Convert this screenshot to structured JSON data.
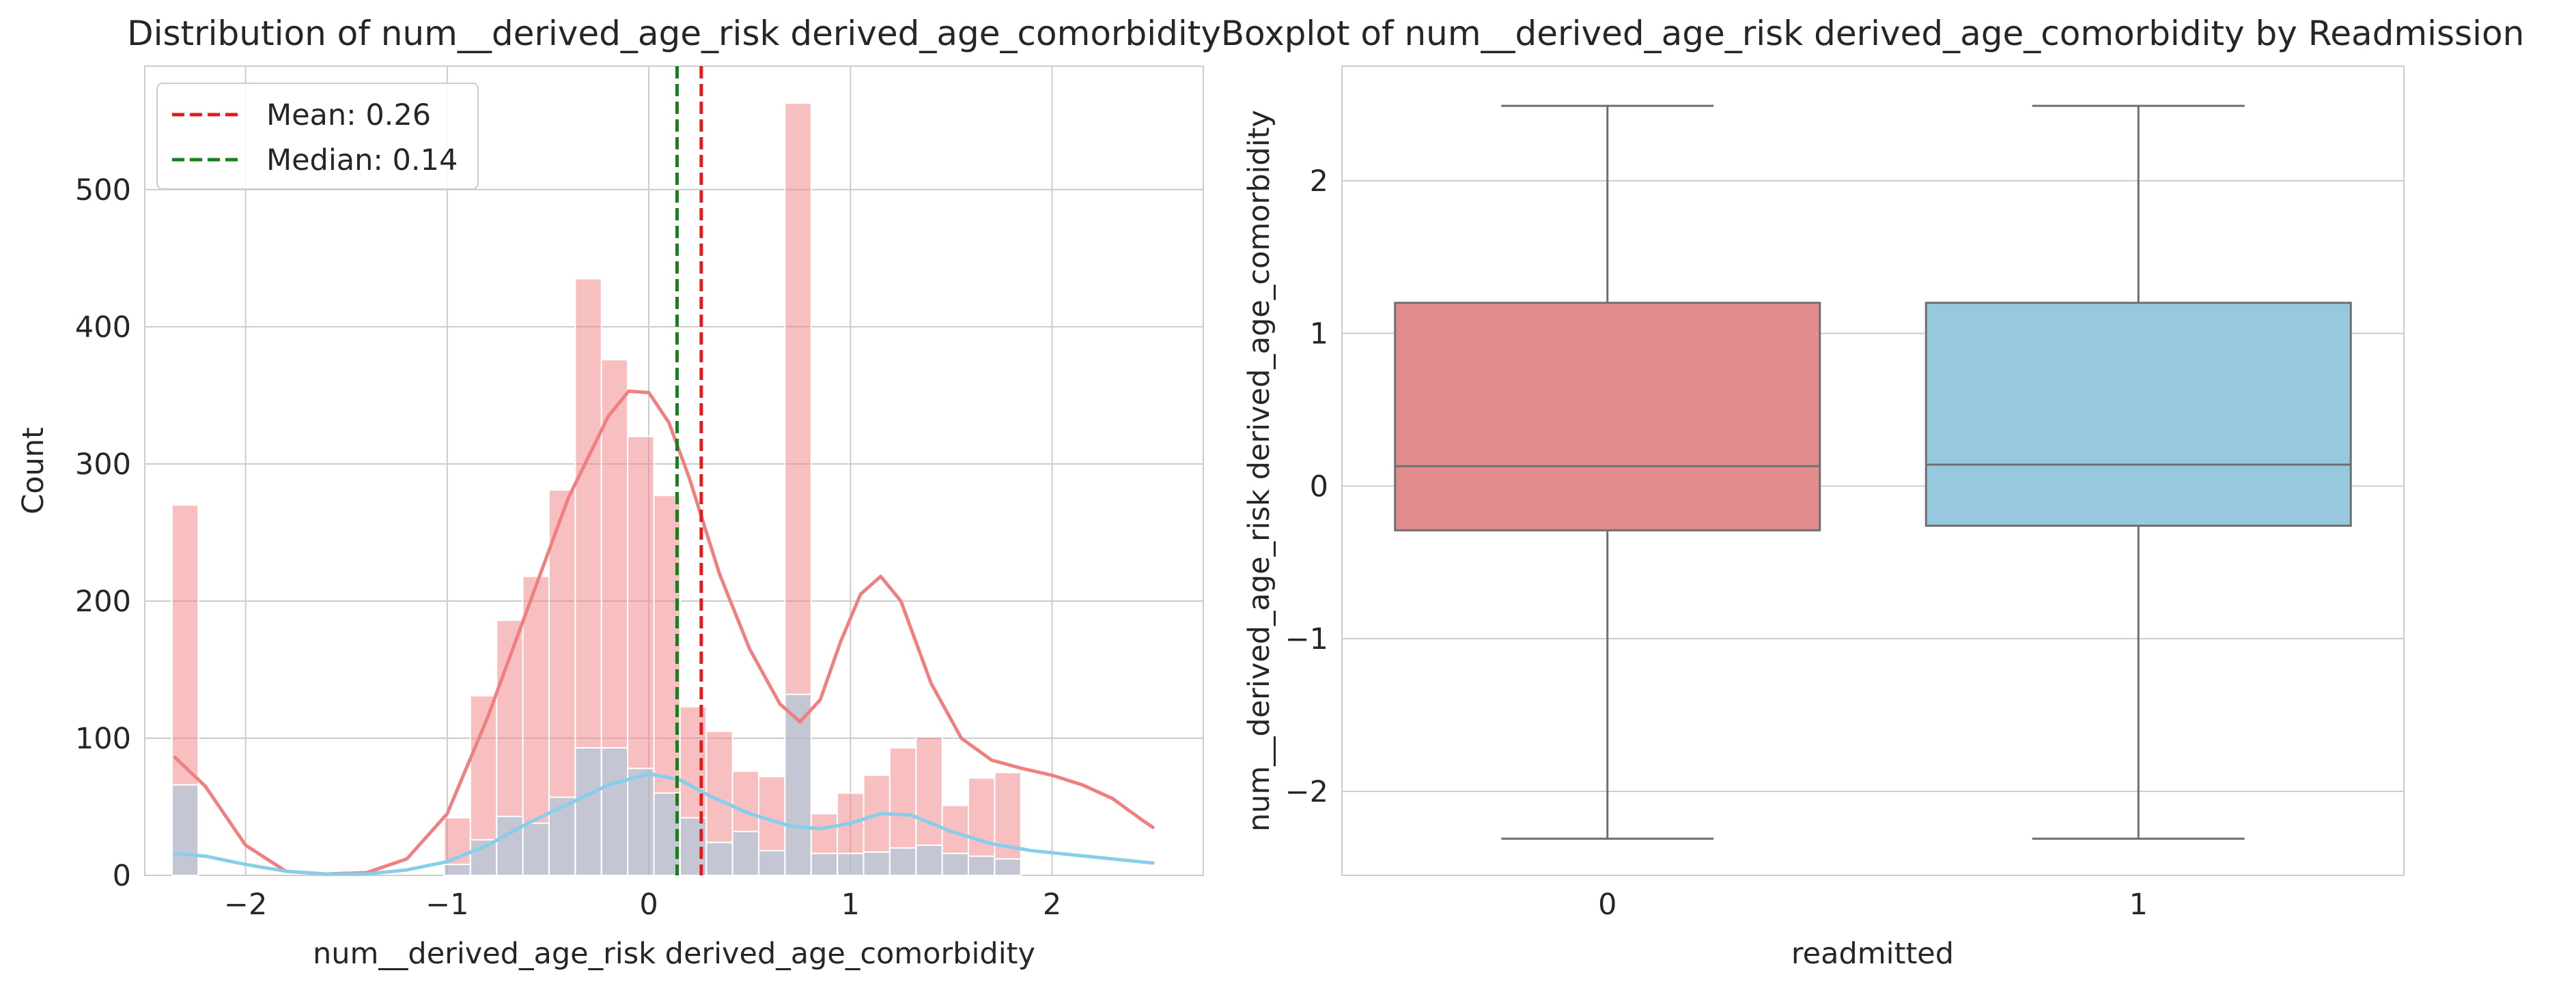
{
  "chart_data": [
    {
      "type": "histogram",
      "title": "Distribution of num__derived_age_risk derived_age_comorbidity",
      "xlabel": "num__derived_age_risk derived_age_comorbidity",
      "ylabel": "Count",
      "xlim": [
        -2.5,
        2.75
      ],
      "ylim": [
        0,
        590
      ],
      "xticks": [
        -2,
        -1,
        0,
        1,
        2
      ],
      "xtick_labels": [
        "−2",
        "−1",
        "0",
        "1",
        "2"
      ],
      "yticks": [
        0,
        100,
        200,
        300,
        400,
        500
      ],
      "ytick_labels": [
        "0",
        "100",
        "200",
        "300",
        "400",
        "500"
      ],
      "grid": true,
      "legend_position": "top-left",
      "bin_edges": [
        -2.3,
        -2.1,
        -1.9,
        -1.7,
        -1.5,
        -1.3,
        -1.1,
        -0.9,
        -0.7,
        -0.5,
        -0.3,
        -0.1,
        0.1,
        0.3,
        0.5,
        0.7,
        0.9,
        1.1,
        1.3,
        1.5,
        1.7,
        1.9,
        2.1,
        2.3,
        2.5
      ],
      "series": [
        {
          "color": "#F08080",
          "counts": [
            270,
            0,
            0,
            0,
            0,
            0,
            0,
            0,
            0,
            0,
            0,
            0,
            0,
            0,
            0,
            0,
            0,
            0,
            0,
            0,
            0,
            0,
            0,
            0
          ],
          "counts_detail": {
            "x": [
              -2.3,
              -0.95,
              -0.82,
              -0.69,
              -0.56,
              -0.43,
              -0.3,
              -0.17,
              -0.04,
              0.09,
              0.22,
              0.35,
              0.48,
              0.61,
              0.74,
              0.87,
              1.0,
              1.13,
              1.26,
              1.39,
              1.52,
              1.65,
              1.78,
              1.91,
              2.04,
              2.17,
              2.3,
              2.43
            ],
            "counts": [
              270,
              42,
              131,
              186,
              218,
              281,
              435,
              376,
              320,
              277,
              123,
              105,
              76,
              72,
              563,
              45,
              60,
              73,
              93,
              101,
              51,
              71,
              75,
              0,
              0,
              0,
              0,
              0
            ]
          },
          "kde": [
            [
              -2.35,
              86
            ],
            [
              -2.2,
              65
            ],
            [
              -2.0,
              22
            ],
            [
              -1.8,
              3
            ],
            [
              -1.6,
              1
            ],
            [
              -1.4,
              2
            ],
            [
              -1.2,
              12
            ],
            [
              -1.0,
              45
            ],
            [
              -0.8,
              115
            ],
            [
              -0.6,
              195
            ],
            [
              -0.4,
              275
            ],
            [
              -0.2,
              335
            ],
            [
              -0.1,
              353
            ],
            [
              0.0,
              352
            ],
            [
              0.1,
              330
            ],
            [
              0.2,
              290
            ],
            [
              0.35,
              220
            ],
            [
              0.5,
              165
            ],
            [
              0.65,
              125
            ],
            [
              0.75,
              112
            ],
            [
              0.85,
              128
            ],
            [
              0.95,
              170
            ],
            [
              1.05,
              205
            ],
            [
              1.15,
              218
            ],
            [
              1.25,
              200
            ],
            [
              1.4,
              140
            ],
            [
              1.55,
              100
            ],
            [
              1.7,
              84
            ],
            [
              1.85,
              78
            ],
            [
              2.0,
              73
            ],
            [
              2.15,
              66
            ],
            [
              2.3,
              56
            ],
            [
              2.45,
              40
            ],
            [
              2.5,
              35
            ]
          ]
        },
        {
          "color": "#87CEEB",
          "counts_detail": {
            "x": [
              -2.3,
              -0.95,
              -0.82,
              -0.69,
              -0.56,
              -0.43,
              -0.3,
              -0.17,
              -0.04,
              0.09,
              0.22,
              0.35,
              0.48,
              0.61,
              0.74,
              0.87,
              1.0,
              1.13,
              1.26,
              1.39,
              1.52,
              1.65,
              1.78,
              1.91,
              2.04,
              2.17,
              2.3,
              2.43
            ],
            "counts": [
              66,
              8,
              26,
              43,
              38,
              57,
              93,
              93,
              78,
              60,
              42,
              24,
              32,
              18,
              132,
              16,
              16,
              17,
              20,
              22,
              16,
              14,
              12,
              0,
              0,
              0,
              0,
              0
            ]
          },
          "kde": [
            [
              -2.35,
              16
            ],
            [
              -2.2,
              14
            ],
            [
              -2.0,
              8
            ],
            [
              -1.8,
              3
            ],
            [
              -1.6,
              1
            ],
            [
              -1.4,
              1
            ],
            [
              -1.2,
              4
            ],
            [
              -1.0,
              10
            ],
            [
              -0.8,
              22
            ],
            [
              -0.6,
              38
            ],
            [
              -0.4,
              52
            ],
            [
              -0.2,
              66
            ],
            [
              0.0,
              74
            ],
            [
              0.15,
              70
            ],
            [
              0.3,
              58
            ],
            [
              0.5,
              45
            ],
            [
              0.7,
              36
            ],
            [
              0.85,
              34
            ],
            [
              1.0,
              38
            ],
            [
              1.15,
              45
            ],
            [
              1.3,
              44
            ],
            [
              1.5,
              32
            ],
            [
              1.7,
              23
            ],
            [
              1.9,
              18
            ],
            [
              2.1,
              15
            ],
            [
              2.3,
              12
            ],
            [
              2.5,
              9
            ]
          ]
        }
      ],
      "lines": [
        {
          "label": "Mean: 0.26",
          "x": 0.26,
          "color": "#E41A1C"
        },
        {
          "label": "Median: 0.14",
          "x": 0.14,
          "color": "#1A7F1A"
        }
      ]
    },
    {
      "type": "boxplot",
      "title": "Boxplot of num__derived_age_risk derived_age_comorbidity by Readmission",
      "xlabel": "readmitted",
      "ylabel": "num__derived_age_risk derived_age_comorbidity",
      "categories": [
        "0",
        "1"
      ],
      "ylim": [
        -2.55,
        2.75
      ],
      "yticks": [
        -2,
        -1,
        0,
        1,
        2
      ],
      "ytick_labels": [
        "−2",
        "−1",
        "0",
        "1",
        "2"
      ],
      "grid": true,
      "boxes": [
        {
          "category": "0",
          "whisker_low": -2.31,
          "q1": -0.29,
          "median": 0.13,
          "q3": 1.2,
          "whisker_high": 2.49,
          "color": "#E38C8D"
        },
        {
          "category": "1",
          "whisker_low": -2.31,
          "q1": -0.26,
          "median": 0.14,
          "q3": 1.2,
          "whisker_high": 2.49,
          "color": "#96C9DE"
        }
      ]
    }
  ]
}
